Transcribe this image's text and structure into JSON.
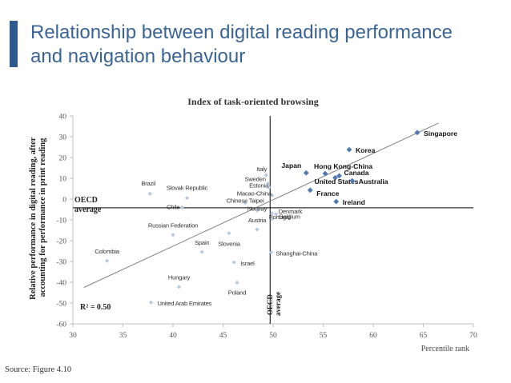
{
  "slide": {
    "title_line1": "Relationship between digital reading performance",
    "title_line2": "and navigation behaviour",
    "source": "Source: Figure 4.10"
  },
  "colors": {
    "title": "#3b6496",
    "accent_bar": "#2f5a8f",
    "highlight_point": "#4f79b0",
    "other_point": "#b8c8df",
    "trend_line": "#7f7f7f"
  },
  "chart_data": {
    "type": "scatter",
    "title": "Index of task-oriented browsing",
    "xlabel": "Percentile rank",
    "ylabel_line1": "Relative performance in digital reading, after",
    "ylabel_line2": "accounting for performance in print reading",
    "xlim": [
      30,
      70
    ],
    "ylim": [
      -60,
      40
    ],
    "xticks": [
      30,
      35,
      40,
      45,
      50,
      55,
      60,
      65,
      70
    ],
    "yticks": [
      -60,
      -50,
      -40,
      -30,
      -20,
      -10,
      0,
      10,
      20,
      30,
      40
    ],
    "grid": false,
    "oecd_average_x": 49.7,
    "oecd_average_y": -4.2,
    "oecd_h_label_line1": "OECD",
    "oecd_h_label_line2": "average",
    "oecd_v_label_line1": "OECD",
    "oecd_v_label_line2": "average",
    "r_squared_label": "R² = 0.50",
    "trend": {
      "x1": 31.1,
      "y1": -42.5,
      "x2": 66.5,
      "y2": 36.5
    },
    "points": [
      {
        "label": "Singapore",
        "x": 64.4,
        "y": 32.0,
        "highlight": true
      },
      {
        "label": "Korea",
        "x": 57.6,
        "y": 23.8,
        "highlight": true
      },
      {
        "label": "Japan",
        "x": 53.3,
        "y": 12.6,
        "highlight": true
      },
      {
        "label": "Hong Kong-China",
        "x": 55.2,
        "y": 12.3,
        "highlight": true
      },
      {
        "label": "Canada",
        "x": 56.6,
        "y": 11.2,
        "highlight": true
      },
      {
        "label": "United States",
        "x": 56.2,
        "y": 10.3,
        "highlight": true
      },
      {
        "label": "Australia",
        "x": 57.9,
        "y": 8.8,
        "highlight": true
      },
      {
        "label": "France",
        "x": 53.7,
        "y": 4.3,
        "highlight": true
      },
      {
        "label": "Ireland",
        "x": 56.3,
        "y": -1.2,
        "highlight": true
      },
      {
        "label": "Italy",
        "x": 49.3,
        "y": 11.5,
        "highlight": false
      },
      {
        "label": "Sweden",
        "x": 49.5,
        "y": 7.5,
        "highlight": false
      },
      {
        "label": "Estonia",
        "x": 49.6,
        "y": 5.6,
        "highlight": false
      },
      {
        "label": "Macao-China",
        "x": 49.9,
        "y": 1.8,
        "highlight": false
      },
      {
        "label": "Chinese Taipei",
        "x": 47.2,
        "y": -1.8,
        "highlight": false
      },
      {
        "label": "Norway",
        "x": 48.4,
        "y": -5.5,
        "highlight": false
      },
      {
        "label": "Denmark",
        "x": 49.9,
        "y": -6.9,
        "highlight": false
      },
      {
        "label": "Belgium",
        "x": 50.3,
        "y": -7.2,
        "highlight": false
      },
      {
        "label": "Portugal",
        "x": 49.9,
        "y": -9.6,
        "highlight": false
      },
      {
        "label": "Brazil",
        "x": 37.7,
        "y": 2.6,
        "highlight": false
      },
      {
        "label": "Slovak Republic",
        "x": 41.4,
        "y": 0.5,
        "highlight": false
      },
      {
        "label": "Chile",
        "x": 40.9,
        "y": -4.0,
        "highlight": false
      },
      {
        "label": "Russian Federation",
        "x": 40.0,
        "y": -17.2,
        "highlight": false
      },
      {
        "label": "Austria",
        "x": 48.4,
        "y": -14.6,
        "highlight": false
      },
      {
        "label": "Slovenia",
        "x": 45.6,
        "y": -16.4,
        "highlight": false
      },
      {
        "label": "Spain",
        "x": 42.9,
        "y": -25.4,
        "highlight": false
      },
      {
        "label": "Shanghai-China",
        "x": 49.8,
        "y": -25.6,
        "highlight": false
      },
      {
        "label": "Israel",
        "x": 46.1,
        "y": -30.4,
        "highlight": false
      },
      {
        "label": "Colombia",
        "x": 33.4,
        "y": -29.7,
        "highlight": false
      },
      {
        "label": "Hungary",
        "x": 40.6,
        "y": -42.2,
        "highlight": false
      },
      {
        "label": "Poland",
        "x": 46.4,
        "y": -40.2,
        "highlight": false
      },
      {
        "label": "United Arab Emirates",
        "x": 37.8,
        "y": -49.7,
        "highlight": false
      }
    ]
  }
}
